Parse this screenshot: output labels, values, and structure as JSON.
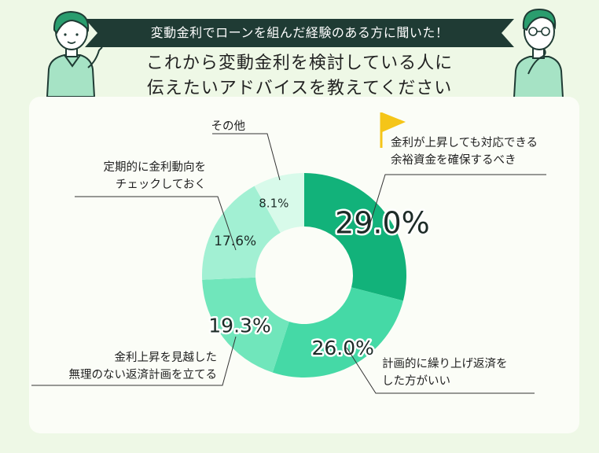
{
  "banner": {
    "text": "変動金利でローンを組んだ経験のある方に聞いた！"
  },
  "title": {
    "line1": "これから変動金利を検討している人に",
    "line2": "伝えたいアドバイスを教えてください"
  },
  "colors": {
    "background": "#eef8e6",
    "banner": "#1f3b34",
    "accent": "#f5c518"
  },
  "chart_data": {
    "type": "pie",
    "donut": true,
    "categories": [
      "金利が上昇しても対応できる余裕資金を確保するべき",
      "計画的に繰り上げ返済をした方がいい",
      "金利上昇を見越した無理のない返済計画を立てる",
      "定期的に金利動向をチェックしておく",
      "その他"
    ],
    "values": [
      29.0,
      26.0,
      19.3,
      17.6,
      8.1
    ],
    "value_labels": [
      "29.0%",
      "26.0%",
      "19.3%",
      "17.6%",
      "8.1%"
    ],
    "label_lines": [
      [
        "金利が上昇しても対応できる",
        "余裕資金を確保するべき"
      ],
      [
        "計画的に繰り上げ返済を",
        "した方がいい"
      ],
      [
        "金利上昇を見越した",
        "無理のない返済計画を立てる"
      ],
      [
        "定期的に金利動向を",
        "チェックしておく"
      ],
      [
        "その他"
      ]
    ],
    "colors": [
      "#12b27a",
      "#45d9a6",
      "#70e6bb",
      "#a2f0d3",
      "#d8faea"
    ],
    "highlight_icon": "flag-icon"
  }
}
